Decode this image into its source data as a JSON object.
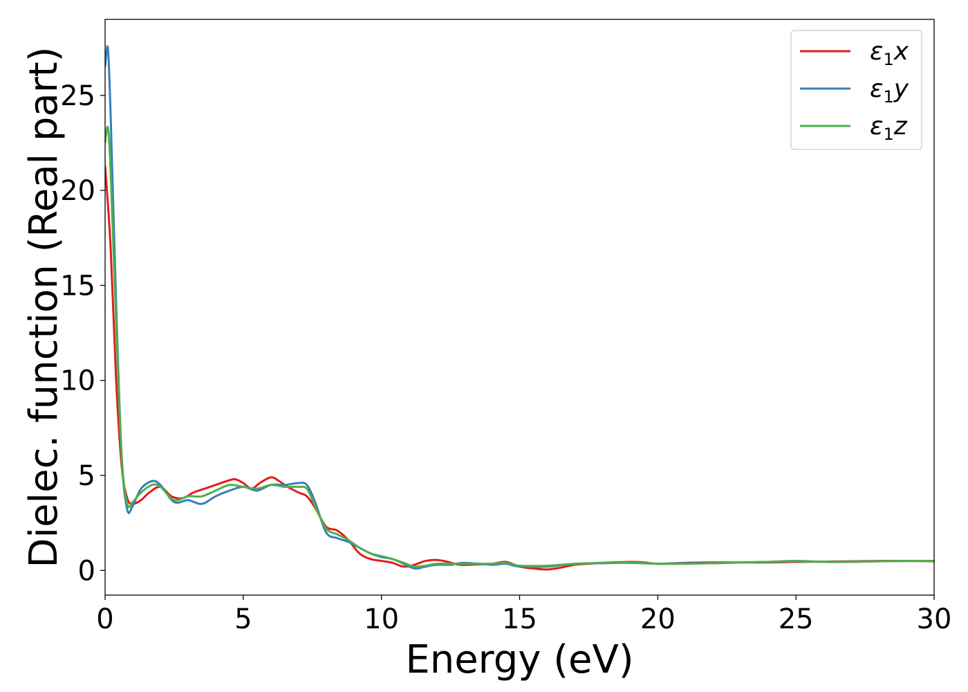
{
  "chart_data": {
    "type": "line",
    "title": "",
    "xlabel": "Energy (eV)",
    "ylabel": "Dielec. function (Real part)",
    "xlim": [
      0,
      30
    ],
    "ylim": [
      -1.3,
      29
    ],
    "xticks": [
      0,
      5,
      10,
      15,
      20,
      25,
      30
    ],
    "yticks": [
      0,
      5,
      10,
      15,
      20,
      25
    ],
    "grid": false,
    "legend_position": "top-right",
    "series": [
      {
        "name": "ε1x",
        "legend_base": "ε",
        "legend_sub": "1",
        "legend_suffix": "x",
        "color": "#e41a1c",
        "x": [
          0,
          0.2,
          0.4,
          0.6,
          0.8,
          1.0,
          1.3,
          1.6,
          2.0,
          2.4,
          2.8,
          3.2,
          3.6,
          4.0,
          4.4,
          4.7,
          5.0,
          5.3,
          5.6,
          6.0,
          6.3,
          6.6,
          7.0,
          7.3,
          7.6,
          8.0,
          8.4,
          8.8,
          9.2,
          9.6,
          10.0,
          10.4,
          10.8,
          11.2,
          11.6,
          12.0,
          12.4,
          12.8,
          13.2,
          14.0,
          14.5,
          15.0,
          15.5,
          16.0,
          16.5,
          17.0,
          17.5,
          18.0,
          19.0,
          19.5,
          20.0,
          21.0,
          22.0,
          23.0,
          24.0,
          25.0,
          26.0,
          27.0,
          28.0,
          29.0,
          30.0
        ],
        "y": [
          21.3,
          17.0,
          10.0,
          5.5,
          3.8,
          3.5,
          3.7,
          4.1,
          4.4,
          3.9,
          3.8,
          4.1,
          4.3,
          4.5,
          4.7,
          4.8,
          4.6,
          4.3,
          4.6,
          4.9,
          4.7,
          4.4,
          4.1,
          3.9,
          3.3,
          2.3,
          2.1,
          1.6,
          0.9,
          0.6,
          0.5,
          0.4,
          0.2,
          0.3,
          0.5,
          0.55,
          0.45,
          0.3,
          0.3,
          0.35,
          0.45,
          0.2,
          0.1,
          0.05,
          0.15,
          0.3,
          0.35,
          0.4,
          0.45,
          0.42,
          0.35,
          0.4,
          0.42,
          0.42,
          0.42,
          0.45,
          0.46,
          0.48,
          0.5,
          0.5,
          0.48
        ]
      },
      {
        "name": "ε1y",
        "legend_base": "ε",
        "legend_sub": "1",
        "legend_suffix": "y",
        "color": "#377eb8",
        "x": [
          0,
          0.1,
          0.2,
          0.4,
          0.6,
          0.8,
          1.0,
          1.3,
          1.7,
          2.0,
          2.5,
          3.0,
          3.5,
          4.0,
          4.5,
          5.0,
          5.5,
          6.0,
          6.5,
          7.0,
          7.3,
          7.6,
          8.0,
          8.4,
          8.8,
          9.2,
          9.6,
          10.0,
          10.4,
          10.8,
          11.2,
          11.6,
          12.0,
          12.5,
          13.0,
          14.0,
          14.5,
          15.0,
          16.0,
          17.0,
          18.0,
          19.0,
          20.0,
          21.0,
          22.0,
          23.0,
          24.0,
          25.0,
          26.0,
          27.0,
          28.0,
          29.0,
          30.0
        ],
        "y": [
          26.5,
          27.5,
          24.0,
          14.0,
          6.0,
          3.2,
          3.4,
          4.3,
          4.7,
          4.5,
          3.6,
          3.7,
          3.5,
          3.9,
          4.2,
          4.4,
          4.2,
          4.5,
          4.5,
          4.6,
          4.5,
          3.6,
          2.0,
          1.7,
          1.5,
          1.2,
          0.9,
          0.7,
          0.6,
          0.35,
          0.1,
          0.2,
          0.3,
          0.3,
          0.4,
          0.3,
          0.35,
          0.2,
          0.2,
          0.35,
          0.38,
          0.4,
          0.35,
          0.38,
          0.38,
          0.42,
          0.45,
          0.5,
          0.45,
          0.45,
          0.48,
          0.5,
          0.5
        ]
      },
      {
        "name": "ε1z",
        "legend_base": "ε",
        "legend_sub": "1",
        "legend_suffix": "z",
        "color": "#4daf4a",
        "x": [
          0,
          0.1,
          0.2,
          0.4,
          0.6,
          0.8,
          1.0,
          1.3,
          1.7,
          2.0,
          2.5,
          3.0,
          3.5,
          4.0,
          4.5,
          5.0,
          5.5,
          6.0,
          6.5,
          7.0,
          7.3,
          7.6,
          8.0,
          8.4,
          8.8,
          9.2,
          9.6,
          10.0,
          10.4,
          10.8,
          11.2,
          11.6,
          12.0,
          12.5,
          13.0,
          14.0,
          14.5,
          15.0,
          16.0,
          17.0,
          18.0,
          19.0,
          20.0,
          21.0,
          22.0,
          23.0,
          24.0,
          25.0,
          26.0,
          27.0,
          28.0,
          29.0,
          30.0
        ],
        "y": [
          22.5,
          23.3,
          21.0,
          13.0,
          6.0,
          3.5,
          3.6,
          4.1,
          4.5,
          4.4,
          3.7,
          3.9,
          3.9,
          4.2,
          4.5,
          4.4,
          4.3,
          4.5,
          4.4,
          4.4,
          4.3,
          3.4,
          2.2,
          1.9,
          1.6,
          1.2,
          0.9,
          0.75,
          0.6,
          0.4,
          0.2,
          0.25,
          0.35,
          0.35,
          0.35,
          0.35,
          0.4,
          0.25,
          0.25,
          0.35,
          0.4,
          0.42,
          0.35,
          0.35,
          0.38,
          0.42,
          0.45,
          0.48,
          0.45,
          0.46,
          0.48,
          0.5,
          0.5
        ]
      }
    ]
  }
}
